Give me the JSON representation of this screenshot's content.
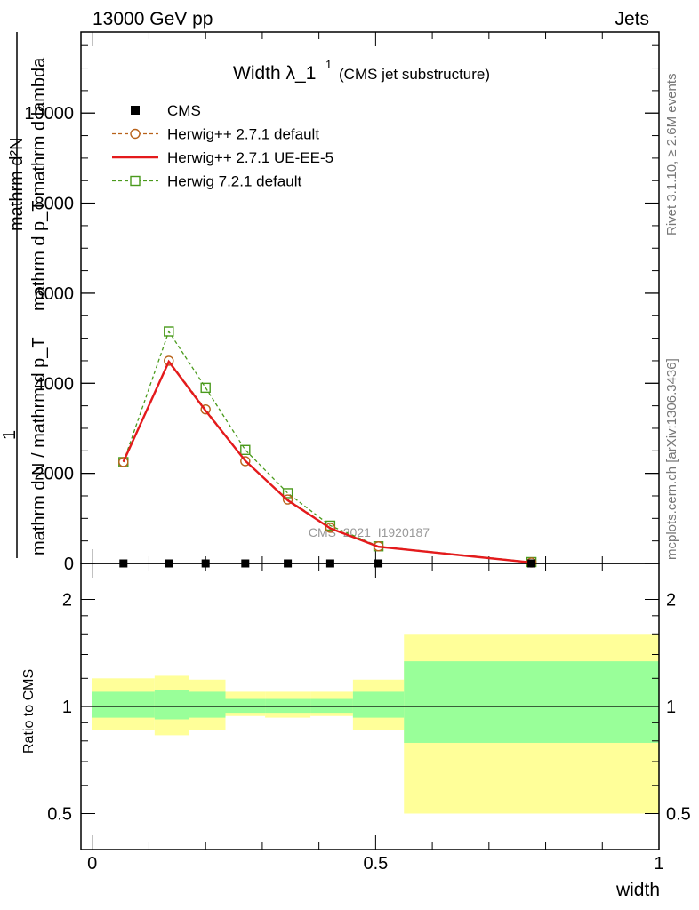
{
  "header": {
    "left": "13000 GeV pp",
    "right": "Jets"
  },
  "title": {
    "main": "Width λ_1",
    "sup": "1",
    "sub": "(CMS jet substructure)"
  },
  "side_labels": {
    "rivet": "Rivet 3.1.10, ≥ 2.6M events",
    "mcplots": "mcplots.cern.ch [arXiv:1306.3436]"
  },
  "watermark": "CMS_2021_I1920187",
  "axes": {
    "y_main_label_line1": "mathrm d²N",
    "y_main_label_line2": "mathrm d p_T mathrm d lambda",
    "y_main_label_line3": "1",
    "y_main_label_line4": "mathrm d N / mathrm d p_T",
    "y_ratio_label": "Ratio to CMS",
    "x_label": "width"
  },
  "chart_data": {
    "type": "line",
    "x": [
      0.055,
      0.135,
      0.2,
      0.27,
      0.345,
      0.42,
      0.505,
      0.775
    ],
    "bin_edges": [
      0,
      0.11,
      0.17,
      0.235,
      0.305,
      0.385,
      0.46,
      0.55,
      1.0
    ],
    "xlim": [
      -0.02,
      1.0
    ],
    "ylim": [
      0,
      11800
    ],
    "yticks": [
      0,
      2000,
      4000,
      6000,
      8000,
      10000
    ],
    "ytick_labels": [
      "0",
      "2000",
      "4000",
      "6000",
      "8000",
      "10000"
    ],
    "xticks": [
      0,
      0.5,
      1
    ],
    "xtick_labels": [
      "0",
      "0.5",
      "1"
    ],
    "series": [
      {
        "name": "CMS",
        "marker": "filled-square",
        "color": "#000000",
        "values": [
          0,
          0,
          0,
          0,
          0,
          0,
          0,
          0
        ]
      },
      {
        "name": "Herwig++ 2.7.1 default",
        "marker": "open-circle",
        "dashed": true,
        "color": "#b8621a",
        "values": [
          2250,
          4500,
          3420,
          2270,
          1420,
          790,
          380,
          20
        ]
      },
      {
        "name": "Herwig++ 2.7.1 UE-EE-5",
        "marker": "none",
        "dashed": false,
        "color": "#e41a1c",
        "values": [
          2260,
          4480,
          3390,
          2280,
          1400,
          780,
          370,
          20
        ]
      },
      {
        "name": "Herwig 7.2.1 default",
        "marker": "open-square",
        "dashed": true,
        "color": "#4a9a1c",
        "values": [
          2250,
          5150,
          3900,
          2520,
          1560,
          840,
          380,
          30
        ]
      }
    ],
    "ratio": {
      "ylim_label_ticks": [
        0.5,
        1,
        2
      ],
      "ytick_labels": [
        "0.5",
        "1",
        "2"
      ],
      "yellow_band": [
        {
          "lo": 0.86,
          "hi": 1.2
        },
        {
          "lo": 0.83,
          "hi": 1.22
        },
        {
          "lo": 0.86,
          "hi": 1.19
        },
        {
          "lo": 0.94,
          "hi": 1.1
        },
        {
          "lo": 0.93,
          "hi": 1.1
        },
        {
          "lo": 0.94,
          "hi": 1.1
        },
        {
          "lo": 0.86,
          "hi": 1.19
        },
        {
          "lo": 0.5,
          "hi": 1.6
        }
      ],
      "green_band": [
        {
          "lo": 0.93,
          "hi": 1.1
        },
        {
          "lo": 0.92,
          "hi": 1.11
        },
        {
          "lo": 0.93,
          "hi": 1.1
        },
        {
          "lo": 0.96,
          "hi": 1.05
        },
        {
          "lo": 0.96,
          "hi": 1.05
        },
        {
          "lo": 0.96,
          "hi": 1.05
        },
        {
          "lo": 0.93,
          "hi": 1.1
        },
        {
          "lo": 0.79,
          "hi": 1.34
        }
      ],
      "colors": {
        "yellow": "#ffff99",
        "green": "#99ff99"
      }
    }
  }
}
